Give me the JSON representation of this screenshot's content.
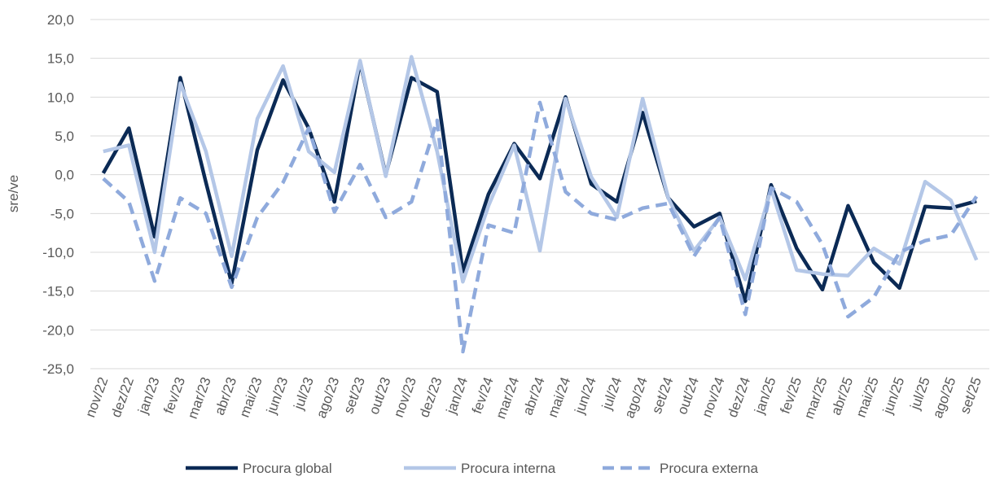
{
  "chart_data": {
    "type": "line",
    "y_label": "sre/ve",
    "categories": [
      "nov/22",
      "dez/22",
      "jan/23",
      "fev/23",
      "mar/23",
      "abr/23",
      "mai/23",
      "jun/23",
      "jul/23",
      "ago/23",
      "set/23",
      "out/23",
      "nov/23",
      "dez/23",
      "jan/24",
      "fev/24",
      "mar/24",
      "abr/24",
      "mai/24",
      "jun/24",
      "jul/24",
      "ago/24",
      "set/24",
      "out/24",
      "nov/24",
      "dez/24",
      "jan/25",
      "fev/25",
      "mar/25",
      "abr/25",
      "mai/25",
      "jun/25",
      "jul/25",
      "ago/25",
      "set/25"
    ],
    "series": [
      {
        "name": "Procura global",
        "color": "#0b2a55",
        "dash": false,
        "values": [
          0.2,
          6.0,
          -8,
          12.5,
          -1,
          -14,
          3.2,
          12.2,
          6,
          -3.5,
          14.5,
          0,
          12.5,
          10.7,
          -12.5,
          -2.5,
          4,
          -0.5,
          10,
          -1.2,
          -3.5,
          8,
          -3,
          -6.7,
          -5,
          -16.3,
          -1.3,
          -9.5,
          -14.8,
          -4,
          -11.3,
          -14.6,
          -4.1,
          -4.3,
          -3.4
        ]
      },
      {
        "name": "Procura interna",
        "color": "#b4c7e7",
        "dash": false,
        "values": [
          3.0,
          3.8,
          -10,
          11.8,
          3,
          -10.5,
          7.2,
          14,
          3,
          0.3,
          14.7,
          -0.2,
          15.2,
          3,
          -13.8,
          -4,
          3.8,
          -9.8,
          9.8,
          -0.3,
          -5.5,
          9.8,
          -3,
          -9.8,
          -5.5,
          -13.5,
          -1.8,
          -12.3,
          -12.8,
          -13,
          -9.5,
          -11.5,
          -0.9,
          -3.3,
          -11
        ]
      },
      {
        "name": "Procura externa",
        "color": "#8faadc",
        "dash": true,
        "values": [
          -0.5,
          -3.5,
          -13.7,
          -3,
          -5,
          -14.5,
          -5.5,
          -1,
          6,
          -4.8,
          1.3,
          -5.5,
          -3.5,
          7,
          -22.8,
          -6.5,
          -7.5,
          9.3,
          -2.2,
          -5,
          -5.8,
          -4.3,
          -3.7,
          -10.5,
          -5.5,
          -18,
          -1.7,
          -3.5,
          -9,
          -18.3,
          -15.8,
          -10,
          -8.5,
          -7.8,
          -2.8
        ]
      }
    ],
    "ylim": [
      -25,
      20
    ],
    "yticks": [
      {
        "value": -25,
        "label": "-25,0"
      },
      {
        "value": -20,
        "label": "-20,0"
      },
      {
        "value": -15,
        "label": "-15,0"
      },
      {
        "value": -10,
        "label": "-10,0"
      },
      {
        "value": -5,
        "label": "-5,0"
      },
      {
        "value": 0,
        "label": "0,0"
      },
      {
        "value": 5,
        "label": "5,0"
      },
      {
        "value": 10,
        "label": "10,0"
      },
      {
        "value": 15,
        "label": "15,0"
      },
      {
        "value": 20,
        "label": "20,0"
      }
    ],
    "grid": true,
    "legend": "bottom"
  }
}
